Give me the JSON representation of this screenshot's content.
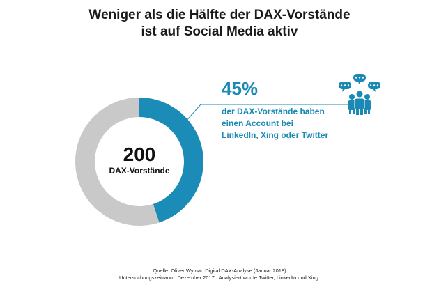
{
  "chart_data": {
    "type": "pie",
    "style": "donut",
    "title_lines": [
      "Weniger als die Hälfte der DAX-Vorstände",
      "ist auf Social Media aktiv"
    ],
    "total": 200,
    "total_label": "DAX-Vorstände",
    "slices": [
      {
        "value": 45,
        "color": "#1b8cb7"
      },
      {
        "value": 55,
        "color": "#c9c9c9"
      }
    ],
    "highlight": {
      "value_text": "45%",
      "description_lines": [
        "der DAX-Vorstände haben",
        "einen Account bei",
        "LinkedIn, Xing oder Twitter"
      ]
    }
  },
  "icon": "people-speech-bubbles-icon",
  "colors": {
    "accent": "#1a8ab4",
    "rest": "#c9c9c9"
  },
  "footer": {
    "line1": "Quelle: Oliver Wyman Digital DAX-Analyse (Januar 2018)",
    "line2": "Untersuchungszeitraum: Dezember 2017 . Analysiert wurde Twitter, LinkedIn und Xing."
  }
}
